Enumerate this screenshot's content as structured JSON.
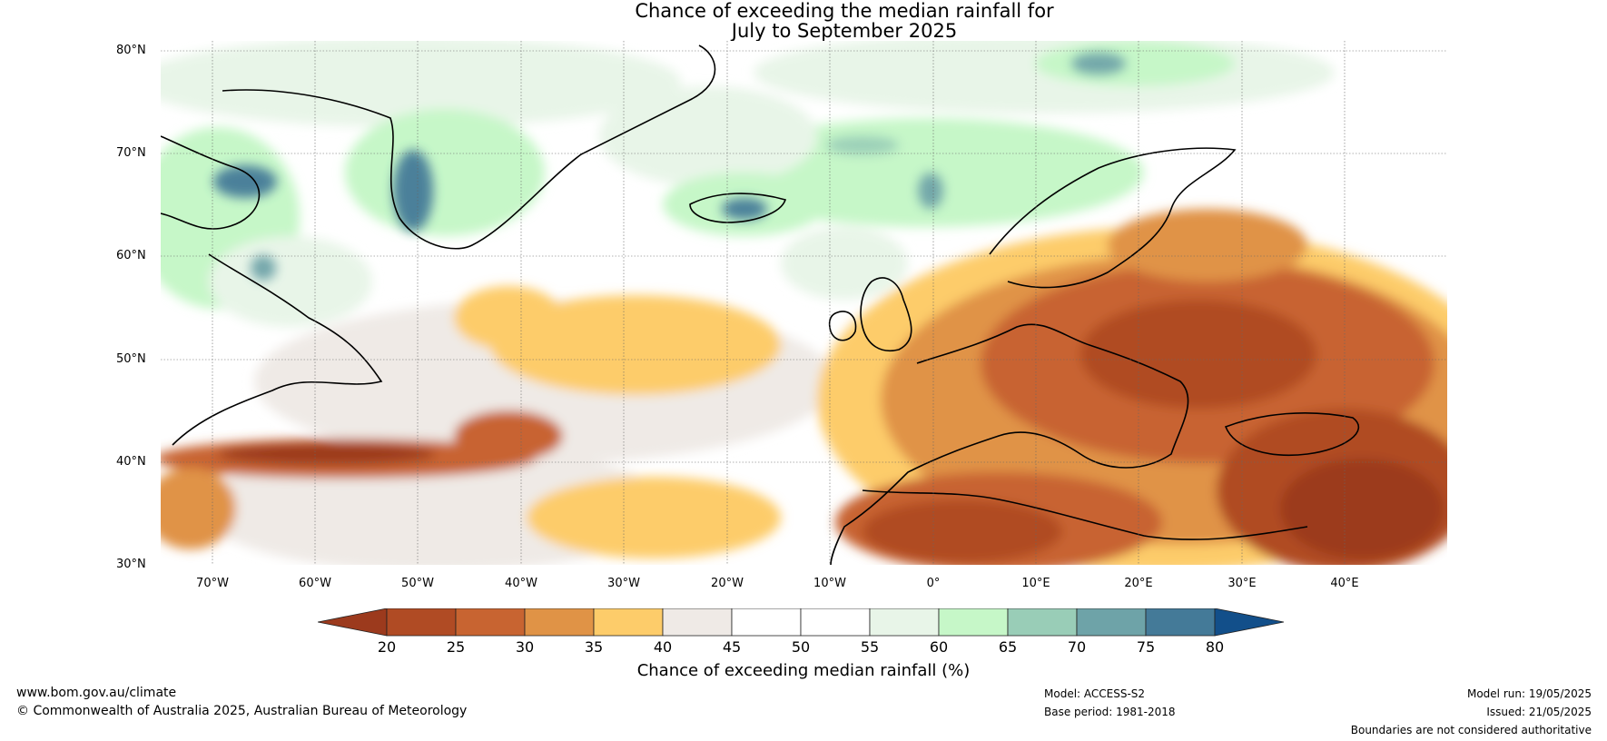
{
  "title": {
    "line1": "Chance of exceeding the median rainfall for",
    "line2": "July to September 2025"
  },
  "map": {
    "lat_labels": [
      "80°N",
      "70°N",
      "60°N",
      "50°N",
      "40°N",
      "30°N"
    ],
    "lon_labels": [
      "70°W",
      "60°W",
      "50°W",
      "40°W",
      "30°W",
      "20°W",
      "10°W",
      "0°",
      "10°E",
      "20°E",
      "30°E",
      "40°E"
    ],
    "lon_range": [
      -75,
      50
    ],
    "lat_range": [
      30,
      81
    ],
    "gridlines": true
  },
  "colorbar": {
    "label": "Chance of exceeding median rainfall (%)",
    "ticks": [
      "20",
      "25",
      "30",
      "35",
      "40",
      "45",
      "50",
      "55",
      "60",
      "65",
      "70",
      "75",
      "80"
    ],
    "colors": [
      "#9c3a1d",
      "#b04b24",
      "#c86431",
      "#e09346",
      "#fdcc6a",
      "#efeae6",
      "#ffffff",
      "#ffffff",
      "#e8f5e8",
      "#c6f7c8",
      "#99cdb7",
      "#6ea3a8",
      "#447a98",
      "#124f8a"
    ]
  },
  "footer": {
    "website": "www.bom.gov.au/climate",
    "copyright": "© Commonwealth of Australia 2025, Australian Bureau of Meteorology",
    "model": "Model: ACCESS-S2",
    "base_period": "Base period: 1981-2018",
    "model_run": "Model run: 19/05/2025",
    "issued": "Issued: 21/05/2025",
    "disclaimer": "Boundaries are not considered authoritative"
  }
}
